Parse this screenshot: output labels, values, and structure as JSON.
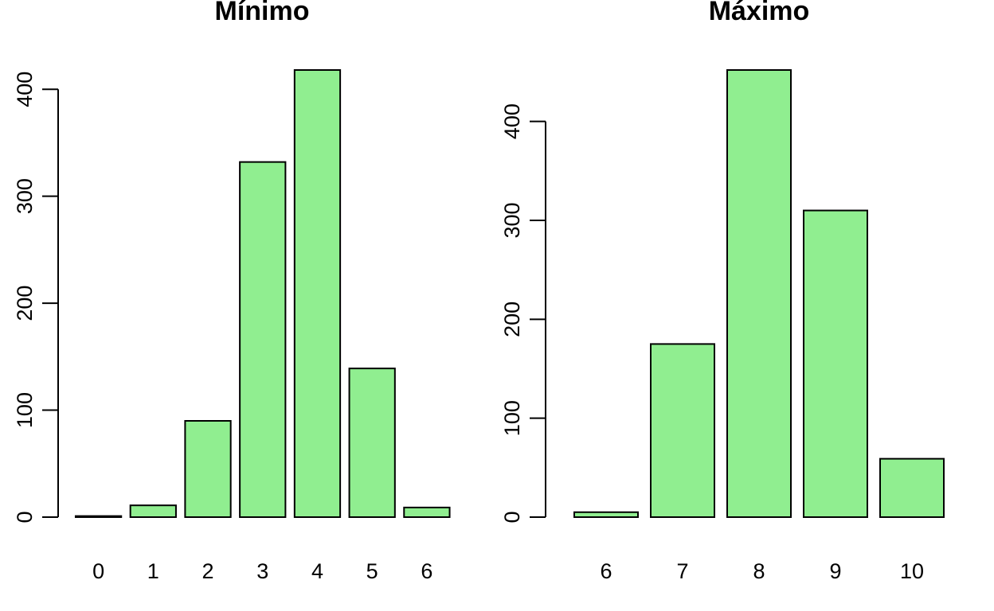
{
  "chart_data": [
    {
      "type": "bar",
      "title": "Mínimo",
      "categories": [
        "0",
        "1",
        "2",
        "3",
        "4",
        "5",
        "6"
      ],
      "values": [
        1,
        11,
        90,
        332,
        418,
        139,
        9
      ],
      "xlabel": "",
      "ylabel": "",
      "ylim": [
        0,
        418
      ],
      "yticks": [
        "0",
        "100",
        "200",
        "300",
        "400"
      ],
      "bar_color": "#90ee90",
      "border_color": "#000000",
      "grid": false,
      "legend": "none"
    },
    {
      "type": "bar",
      "title": "Máximo",
      "categories": [
        "6",
        "7",
        "8",
        "9",
        "10"
      ],
      "values": [
        5,
        175,
        452,
        310,
        59
      ],
      "xlabel": "",
      "ylabel": "",
      "ylim": [
        0,
        452
      ],
      "yticks": [
        "0",
        "100",
        "200",
        "300",
        "400"
      ],
      "bar_color": "#90ee90",
      "border_color": "#000000",
      "grid": false,
      "legend": "none"
    }
  ]
}
